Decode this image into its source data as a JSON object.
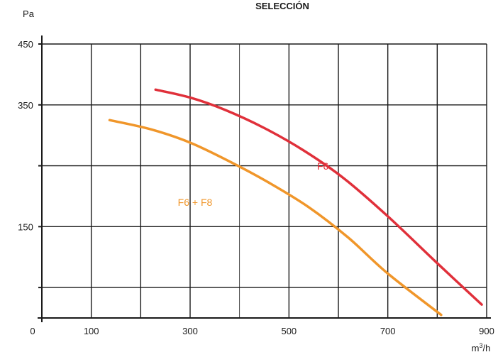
{
  "chart_data": {
    "type": "line",
    "title": "SELECCIÓN",
    "ylabel": "Pa",
    "xlabel_base": "m",
    "xlabel_sup": "3",
    "xlabel_tail": "/h",
    "xlim": [
      0,
      900
    ],
    "ylim": [
      0,
      450
    ],
    "x_ticks": [
      0,
      100,
      300,
      500,
      700,
      900
    ],
    "y_ticks": [
      150,
      350,
      450
    ],
    "x_grid": [
      100,
      200,
      300,
      400,
      500,
      600,
      700,
      800,
      900
    ],
    "y_grid": [
      50,
      150,
      250,
      350,
      450
    ],
    "grid": true,
    "colors": {
      "F6": "#e0303a",
      "F6 + F8": "#f0962a"
    },
    "series": [
      {
        "name": "F6",
        "x": [
          230,
          300,
          370,
          450,
          530,
          610,
          700,
          800,
          890
        ],
        "y": [
          375,
          362,
          342,
          312,
          275,
          230,
          167,
          90,
          22
        ]
      },
      {
        "name": "F6 + F8",
        "x": [
          137,
          220,
          300,
          380,
          460,
          540,
          620,
          700,
          808
        ],
        "y": [
          325,
          310,
          288,
          257,
          222,
          182,
          132,
          73,
          5
        ]
      }
    ]
  }
}
